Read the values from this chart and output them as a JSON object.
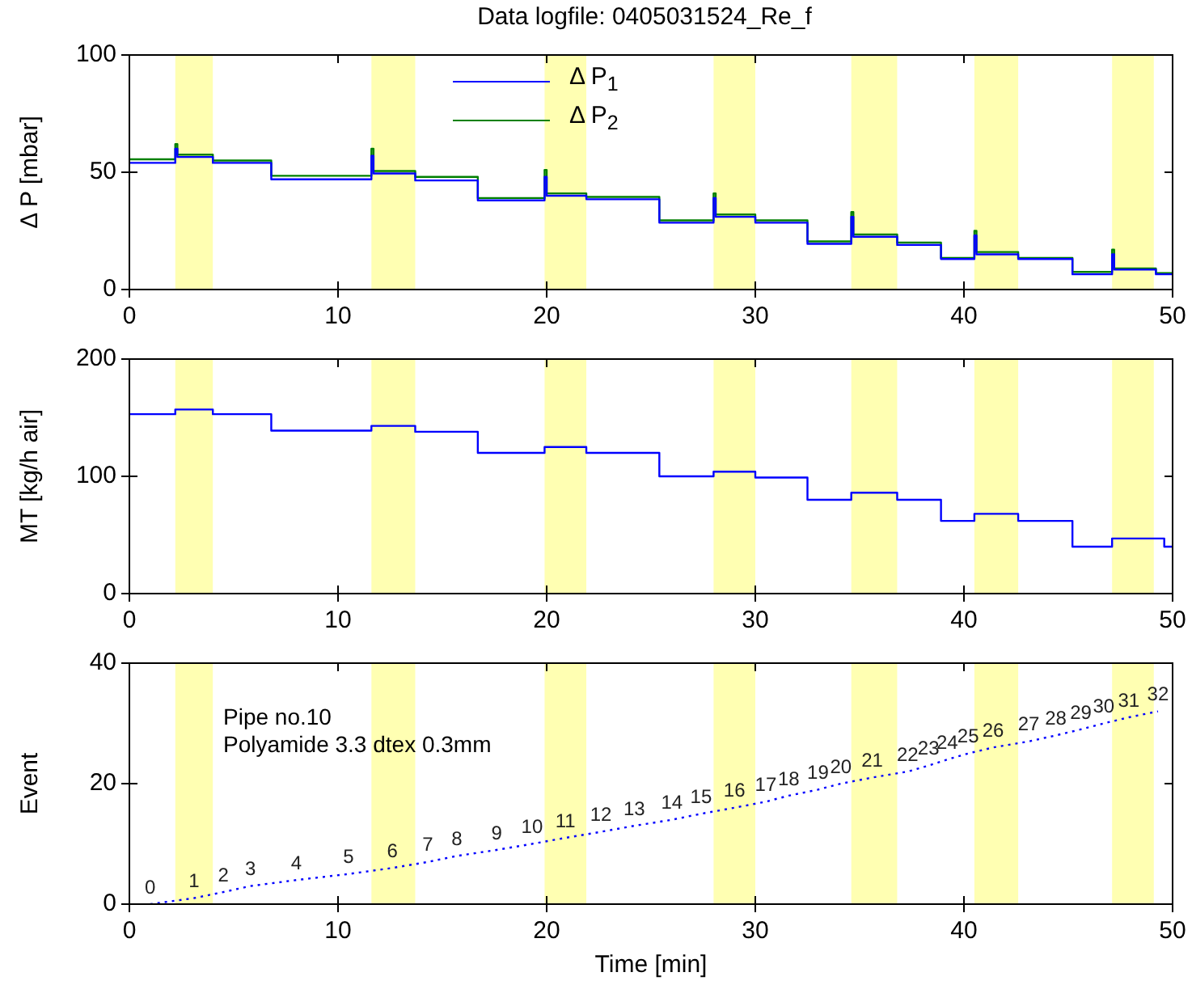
{
  "chart_data": [
    {
      "type": "step",
      "title": "Data logfile: 0405031524_Re_f",
      "ylabel": "Δ P [mbar]",
      "xlim": [
        0,
        50
      ],
      "xticks": [
        0,
        10,
        20,
        30,
        40,
        50
      ],
      "ylim": [
        0,
        100
      ],
      "yticks": [
        0,
        50,
        100
      ],
      "grid": false,
      "legend": "top",
      "marker": "none",
      "line_style": "solid",
      "series": [
        {
          "name": "Δ P$_{1}$",
          "color": "#0000ff",
          "x": [
            0,
            2.2,
            2.3,
            4,
            6.8,
            11.6,
            11.7,
            13.7,
            16.7,
            19.9,
            20,
            21.9,
            25.4,
            28,
            28.1,
            30,
            32.5,
            34.6,
            34.7,
            36.8,
            38.9,
            40.5,
            40.6,
            42.6,
            45.2,
            47.1,
            47.2,
            49.2,
            50
          ],
          "values": [
            54,
            60,
            56.5,
            54,
            47,
            57,
            49.5,
            46.5,
            38,
            48,
            40,
            38.5,
            28.5,
            39,
            31,
            28.5,
            19.5,
            31,
            22.5,
            19,
            13,
            23,
            15,
            13,
            6.5,
            15,
            8.5,
            6.5,
            6.5
          ]
        },
        {
          "name": "Δ P$_{2}$",
          "color": "#008000",
          "x": [
            0,
            2.2,
            2.3,
            4,
            6.8,
            11.6,
            11.7,
            13.7,
            16.7,
            19.9,
            20,
            21.9,
            25.4,
            28,
            28.1,
            30,
            32.5,
            34.6,
            34.7,
            36.8,
            38.9,
            40.5,
            40.6,
            42.6,
            45.2,
            47.1,
            47.2,
            49.2,
            50
          ],
          "values": [
            55.5,
            62,
            57.5,
            55,
            48.5,
            60,
            50.5,
            48,
            39,
            51,
            41,
            39.5,
            29.5,
            41,
            32,
            29.5,
            20.5,
            33,
            23.5,
            20,
            13.5,
            25,
            16,
            13.5,
            7.5,
            17,
            9,
            7,
            7
          ]
        }
      ],
      "bands": [
        {
          "axis": "x",
          "from": 2.2,
          "to": 4.0,
          "color": "#ffff00"
        },
        {
          "axis": "x",
          "from": 11.6,
          "to": 13.7,
          "color": "#ffff00"
        },
        {
          "axis": "x",
          "from": 19.9,
          "to": 21.9,
          "color": "#ffff00"
        },
        {
          "axis": "x",
          "from": 28.0,
          "to": 30.0,
          "color": "#ffff00"
        },
        {
          "axis": "x",
          "from": 34.6,
          "to": 36.8,
          "color": "#ffff00"
        },
        {
          "axis": "x",
          "from": 40.5,
          "to": 42.6,
          "color": "#ffff00"
        },
        {
          "axis": "x",
          "from": 47.1,
          "to": 49.1,
          "color": "#ffff00"
        }
      ]
    },
    {
      "type": "step",
      "ylabel": "MT [kg/h air]",
      "xlim": [
        0,
        50
      ],
      "xticks": [
        0,
        10,
        20,
        30,
        40,
        50
      ],
      "ylim": [
        0,
        200
      ],
      "yticks": [
        0,
        100,
        200
      ],
      "grid": false,
      "marker": "none",
      "line_style": "solid",
      "series": [
        {
          "color": "#0000ff",
          "x": [
            0,
            2.2,
            4,
            6.8,
            11.6,
            13.7,
            16.7,
            19.9,
            21.9,
            25.4,
            28,
            30,
            32.5,
            34.6,
            36.8,
            38.9,
            40.5,
            42.6,
            45.2,
            47.1,
            49.2,
            49.6,
            50
          ],
          "values": [
            153,
            157,
            153,
            139,
            143,
            138,
            120,
            125,
            120,
            100,
            104,
            99,
            80,
            86,
            80,
            62,
            68,
            62,
            40,
            47,
            47,
            40,
            40
          ]
        }
      ],
      "bands": [
        {
          "axis": "x",
          "from": 2.2,
          "to": 4.0,
          "color": "#ffff00"
        },
        {
          "axis": "x",
          "from": 11.6,
          "to": 13.7,
          "color": "#ffff00"
        },
        {
          "axis": "x",
          "from": 19.9,
          "to": 21.9,
          "color": "#ffff00"
        },
        {
          "axis": "x",
          "from": 28.0,
          "to": 30.0,
          "color": "#ffff00"
        },
        {
          "axis": "x",
          "from": 34.6,
          "to": 36.8,
          "color": "#ffff00"
        },
        {
          "axis": "x",
          "from": 40.5,
          "to": 42.6,
          "color": "#ffff00"
        },
        {
          "axis": "x",
          "from": 47.1,
          "to": 49.1,
          "color": "#ffff00"
        }
      ]
    },
    {
      "type": "line",
      "xlabel": "Time [min]",
      "ylabel": "Event",
      "xlim": [
        0,
        50
      ],
      "xticks": [
        0,
        10,
        20,
        30,
        40,
        50
      ],
      "ylim": [
        0,
        40
      ],
      "yticks": [
        0,
        20,
        40
      ],
      "grid": false,
      "marker": "none",
      "line_style": "dotted",
      "data_labels": true,
      "annotations": [
        "Pipe no.10",
        "Polyamide 3.3 dtex 0.3mm"
      ],
      "series": [
        {
          "color": "#0000ff",
          "x": [
            1,
            3.1,
            4.5,
            5.8,
            8,
            10.5,
            12.6,
            14.3,
            15.7,
            17.6,
            19.3,
            20.9,
            22.6,
            24.2,
            26,
            27.4,
            29,
            30.5,
            31.6,
            33,
            34.1,
            35.6,
            37.3,
            38.3,
            39.2,
            40.2,
            41.4,
            43.1,
            44.4,
            45.6,
            46.7,
            47.9,
            49.3
          ],
          "values": [
            0,
            1,
            2,
            3,
            4,
            5,
            6,
            7,
            8,
            9,
            10,
            11,
            12,
            13,
            14,
            15,
            16,
            17,
            18,
            19,
            20,
            21,
            22,
            23,
            24,
            25,
            26,
            27,
            28,
            29,
            30,
            31,
            32
          ]
        }
      ],
      "bands": [
        {
          "axis": "x",
          "from": 2.2,
          "to": 4.0,
          "color": "#ffff00"
        },
        {
          "axis": "x",
          "from": 11.6,
          "to": 13.7,
          "color": "#ffff00"
        },
        {
          "axis": "x",
          "from": 19.9,
          "to": 21.9,
          "color": "#ffff00"
        },
        {
          "axis": "x",
          "from": 28.0,
          "to": 30.0,
          "color": "#ffff00"
        },
        {
          "axis": "x",
          "from": 34.6,
          "to": 36.8,
          "color": "#ffff00"
        },
        {
          "axis": "x",
          "from": 40.5,
          "to": 42.6,
          "color": "#ffff00"
        },
        {
          "axis": "x",
          "from": 47.1,
          "to": 49.1,
          "color": "#ffff00"
        }
      ]
    }
  ]
}
